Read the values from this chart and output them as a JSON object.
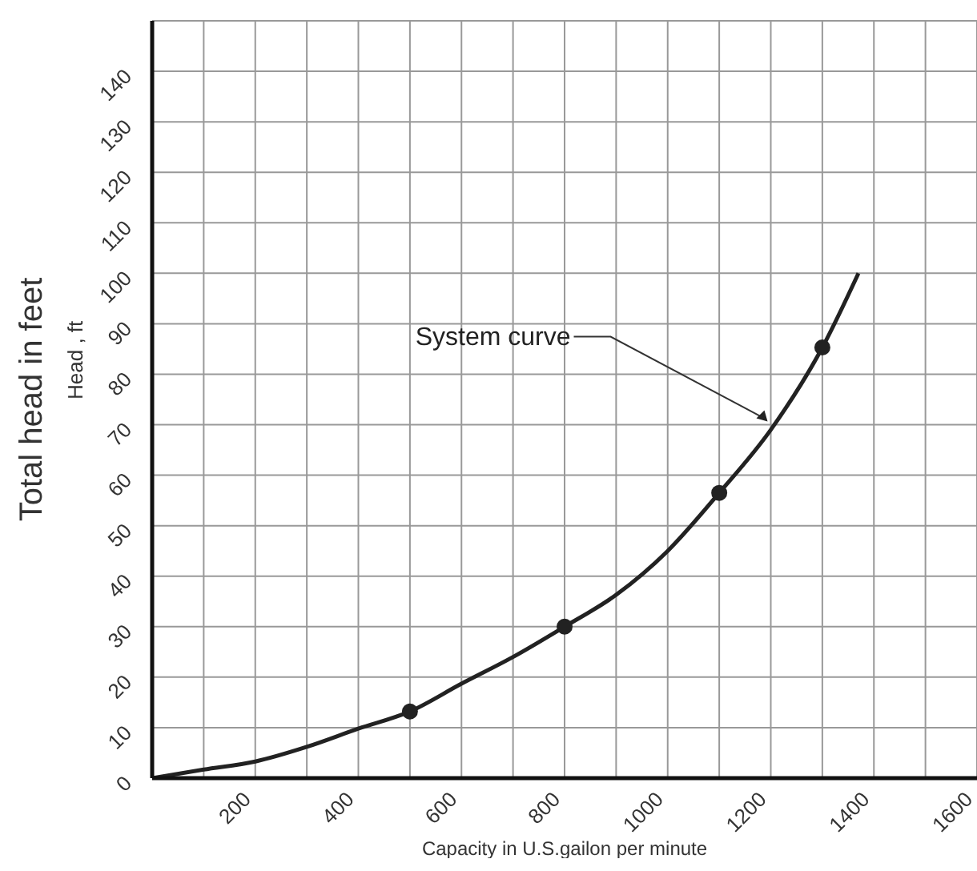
{
  "chart_data": {
    "type": "line",
    "xlabel": "Capacity in U.S.gailon per minute",
    "ylabel": "Head , ft",
    "annotations": [
      "Total head in feet",
      {
        "text": "System curve",
        "x": 1200,
        "y": 70
      }
    ],
    "xlim": [
      0,
      1600
    ],
    "ylim": [
      0,
      150
    ],
    "xticks": [
      {
        "value": 100,
        "label": null
      },
      200,
      {
        "value": 300,
        "label": null
      },
      400,
      {
        "value": 500,
        "label": null
      },
      600,
      {
        "value": 700,
        "label": null
      },
      800,
      {
        "value": 900,
        "label": null
      },
      1000,
      {
        "value": 1100,
        "label": null
      },
      1200,
      {
        "value": 1300,
        "label": null
      },
      1400,
      {
        "value": 1500,
        "label": null
      },
      1600
    ],
    "yticks": [
      0,
      10,
      20,
      30,
      40,
      50,
      60,
      70,
      80,
      90,
      100,
      110,
      120,
      130,
      140,
      {
        "value": 150,
        "label": null
      }
    ],
    "grid": true,
    "legend": false,
    "series": [
      {
        "color": "#222222",
        "marker": "none",
        "x": [
          0,
          100,
          200,
          300,
          400,
          500,
          600,
          700,
          800,
          900,
          1000,
          1100,
          1200,
          1300,
          1370
        ],
        "values": [
          0,
          1.7,
          3.3,
          6.2,
          9.8,
          13.2,
          18.7,
          24,
          30,
          36.3,
          45,
          56.5,
          69,
          85.3,
          100
        ]
      },
      {
        "type": "scatter",
        "color": "#222222",
        "marker": "circle",
        "x": [
          500,
          800,
          1100,
          1300
        ],
        "values": [
          13.2,
          30,
          56.5,
          85.3
        ]
      }
    ]
  }
}
